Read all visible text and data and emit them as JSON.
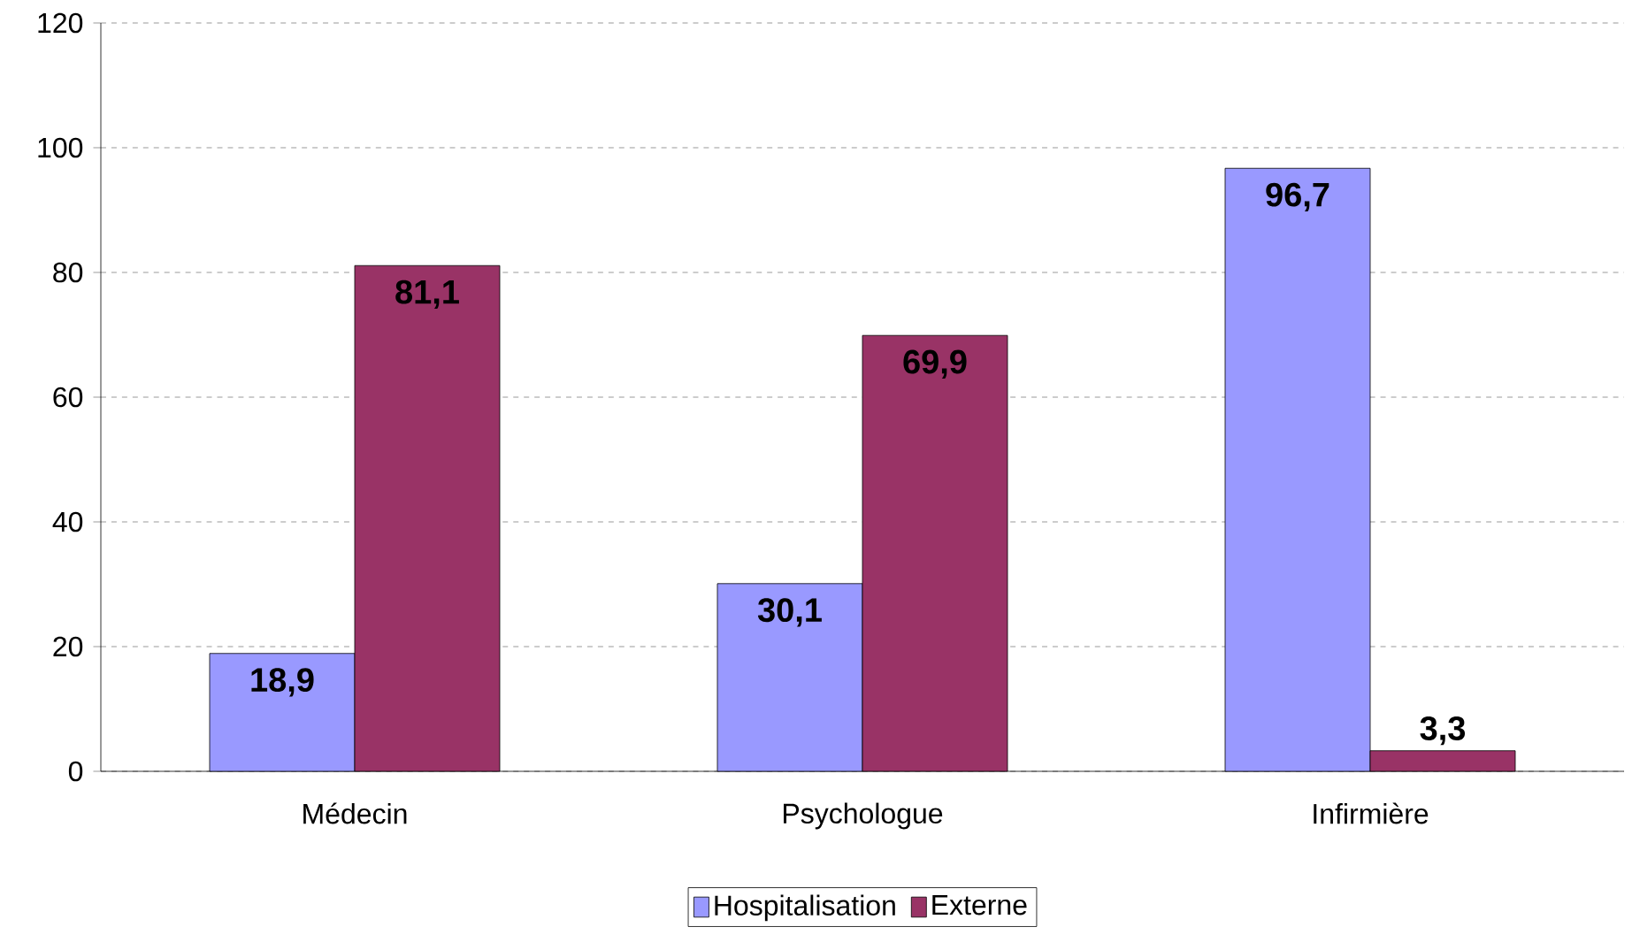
{
  "chart_data": {
    "type": "bar",
    "categories": [
      "Médecin",
      "Psychologue",
      "Infirmière"
    ],
    "series": [
      {
        "name": "Hospitalisation",
        "color": "#9999ff",
        "values": [
          18.9,
          30.1,
          96.7
        ],
        "value_labels": [
          "18,9",
          "30,1",
          "96,7"
        ]
      },
      {
        "name": "Externe",
        "color": "#993366",
        "values": [
          81.1,
          69.9,
          3.3
        ],
        "value_labels": [
          "81,1",
          "69,9",
          "3,3"
        ]
      }
    ],
    "ylim": [
      0,
      120
    ],
    "yticks": [
      0,
      20,
      40,
      60,
      80,
      100,
      120
    ],
    "grid": "y",
    "legend": "bottom"
  }
}
